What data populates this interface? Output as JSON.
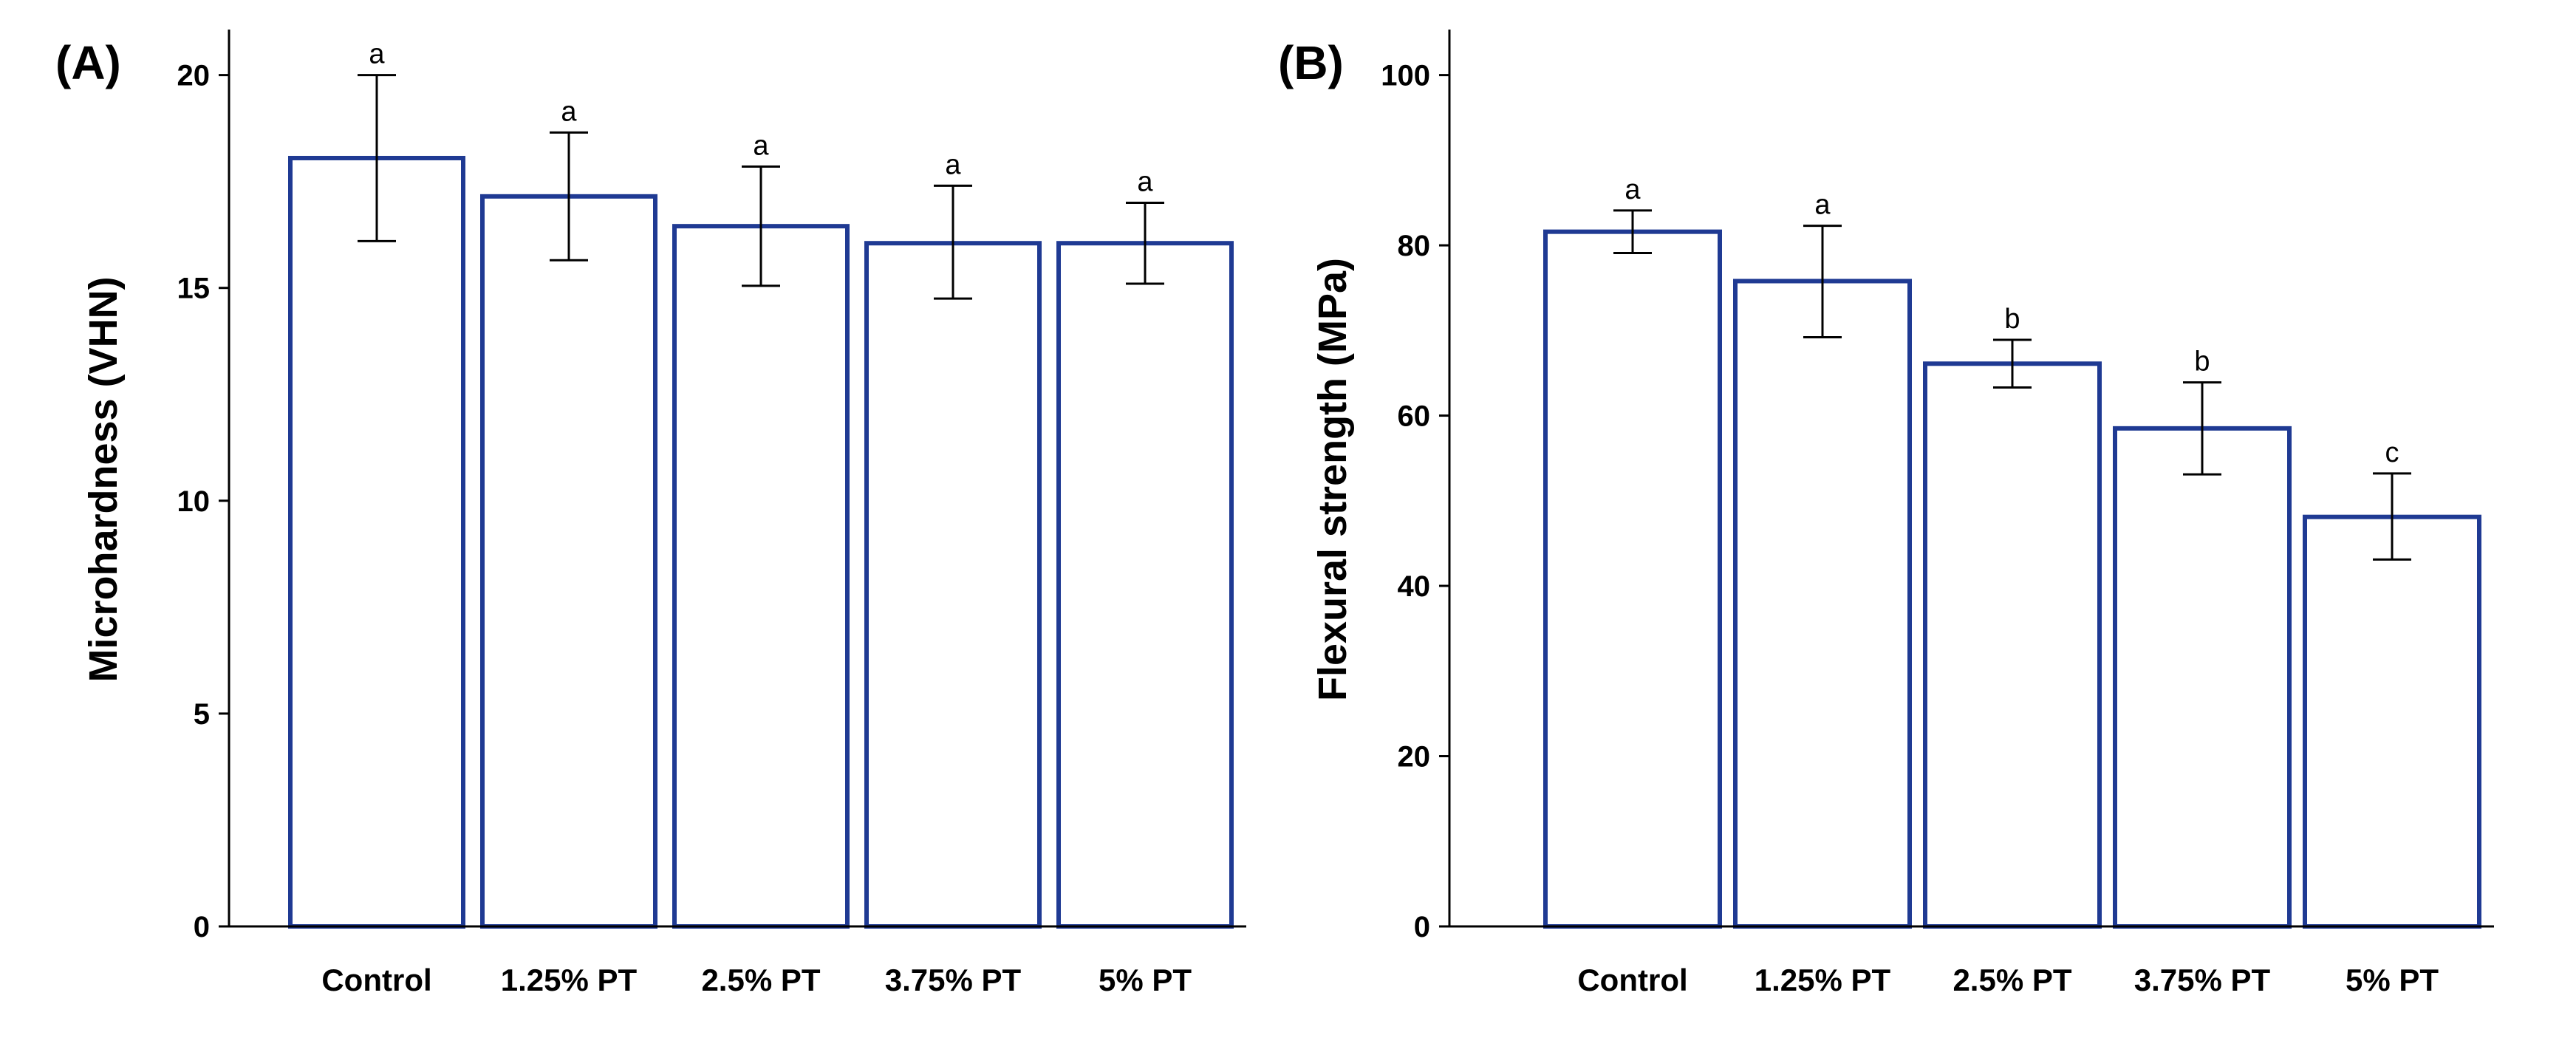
{
  "colors": {
    "bar_edge": "#1f3a93",
    "axis": "#000000",
    "background": "#ffffff"
  },
  "chart_data": [
    {
      "type": "bar",
      "panel_label": "(A)",
      "title": "",
      "xlabel": "",
      "ylabel": "Microhardness (VHN)",
      "ylim": [
        0,
        21
      ],
      "yticks": [
        0,
        5,
        10,
        15,
        20
      ],
      "categories": [
        "Control",
        "1.25% PT",
        "2.5% PT",
        "3.75% PT",
        "5% PT"
      ],
      "values": [
        18.05,
        17.15,
        16.45,
        16.05,
        16.05
      ],
      "error_low": [
        16.1,
        15.65,
        15.05,
        14.75,
        15.1
      ],
      "error_high": [
        20.0,
        18.65,
        17.85,
        17.4,
        17.0
      ],
      "significance": [
        "a",
        "a",
        "a",
        "a",
        "a"
      ]
    },
    {
      "type": "bar",
      "panel_label": "(B)",
      "title": "",
      "xlabel": "",
      "ylabel": "Flexural strength (MPa)",
      "ylim": [
        0,
        105
      ],
      "yticks": [
        0,
        20,
        40,
        60,
        80,
        100
      ],
      "categories": [
        "Control",
        "1.25% PT",
        "2.5% PT",
        "3.75% PT",
        "5% PT"
      ],
      "values": [
        81.6,
        75.8,
        66.1,
        58.5,
        48.1
      ],
      "error_low": [
        79.1,
        69.2,
        63.3,
        53.1,
        43.1
      ],
      "error_high": [
        84.1,
        82.3,
        68.9,
        63.9,
        53.2
      ],
      "significance": [
        "a",
        "a",
        "b",
        "b",
        "c"
      ]
    }
  ]
}
